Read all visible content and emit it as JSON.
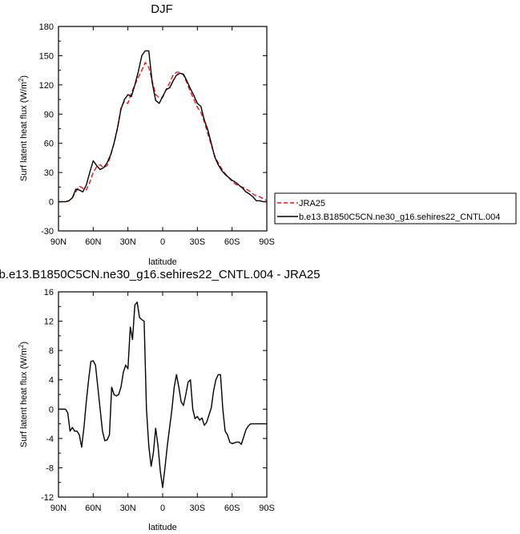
{
  "charts": {
    "top": {
      "title": "DJF",
      "xlabel": "latitude",
      "ylabel_main": "Surf latent heat flux (W/m",
      "ylabel_sup": "2",
      "ylabel_tail": ")"
    },
    "bottom": {
      "title": "b.e13.B1850C5CN.ne30_g16.sehires22_CNTL.004 - JRA25",
      "xlabel": "latitude",
      "ylabel_main": "Surf latent heat flux (W/m",
      "ylabel_sup": "2",
      "ylabel_tail": ")"
    }
  },
  "legend": {
    "items": [
      {
        "label": "JRA25",
        "color": "#e3161a",
        "dash": true
      },
      {
        "label": "b.e13.B1850C5CN.ne30_g16.sehires22_CNTL.004",
        "color": "#000000",
        "dash": false
      }
    ],
    "placement": "right of top panel"
  },
  "chart_data": [
    {
      "type": "line",
      "title": "DJF",
      "xlabel": "latitude",
      "ylabel": "Surf latent heat flux (W/m2)",
      "xlim": [
        90,
        -90
      ],
      "ylim": [
        -30,
        180
      ],
      "x_ticks": [
        90,
        60,
        30,
        0,
        -30,
        -60,
        -90
      ],
      "x_tick_labels": [
        "90N",
        "60N",
        "30N",
        "0",
        "30S",
        "60S",
        "90S"
      ],
      "y_ticks": [
        -30,
        0,
        30,
        60,
        90,
        120,
        150,
        180
      ],
      "y_tick_labels": [
        "-30",
        "0",
        "30",
        "60",
        "90",
        "120",
        "150",
        "180"
      ],
      "grid": false,
      "x": [
        90,
        87,
        84,
        81,
        78,
        75,
        72,
        69,
        66,
        63,
        60,
        57,
        54,
        51,
        48,
        45,
        42,
        39,
        36,
        33,
        30,
        27,
        24,
        21,
        18,
        15,
        12,
        9,
        6,
        3,
        0,
        -3,
        -6,
        -9,
        -12,
        -15,
        -18,
        -21,
        -24,
        -27,
        -30,
        -33,
        -36,
        -39,
        -42,
        -45,
        -48,
        -51,
        -54,
        -57,
        -60,
        -63,
        -66,
        -69,
        -72,
        -75,
        -78,
        -81,
        -84,
        -87,
        -90
      ],
      "series": [
        {
          "name": "JRA25",
          "color": "#e3161a",
          "dash": true,
          "values": [
            0,
            0,
            0,
            1,
            4,
            10,
            16,
            14,
            12,
            20,
            30,
            36,
            38,
            35,
            37,
            47,
            60,
            75,
            97,
            103,
            101,
            112,
            120,
            128,
            135,
            143,
            138,
            124,
            110,
            107,
            107,
            115,
            122,
            130,
            133,
            133,
            130,
            122,
            113,
            105,
            97,
            92,
            82,
            70,
            58,
            47,
            40,
            34,
            29,
            25,
            21,
            18,
            16,
            15,
            13,
            11,
            8,
            6,
            5,
            3,
            1
          ]
        },
        {
          "name": "b.e13.B1850C5CN.ne30_g16.sehires22_CNTL.004",
          "color": "#000000",
          "dash": false,
          "values": [
            0,
            0,
            0,
            1,
            4,
            13,
            12,
            10,
            17,
            30,
            42,
            37,
            33,
            35,
            40,
            48,
            60,
            76,
            95,
            105,
            110,
            108,
            120,
            134,
            150,
            155,
            155,
            122,
            104,
            101,
            108,
            115,
            117,
            124,
            130,
            132,
            131,
            124,
            116,
            109,
            101,
            98,
            84,
            74,
            60,
            46,
            38,
            32,
            28,
            25,
            22,
            20,
            17,
            14,
            10,
            8,
            5,
            1,
            1,
            0,
            0
          ]
        }
      ]
    },
    {
      "type": "line",
      "title": "b.e13.B1850C5CN.ne30_g16.sehires22_CNTL.004 - JRA25",
      "xlabel": "latitude",
      "ylabel": "Surf latent heat flux (W/m2)",
      "xlim": [
        90,
        -90
      ],
      "ylim": [
        -12,
        16
      ],
      "x_ticks": [
        90,
        60,
        30,
        0,
        -30,
        -60,
        -90
      ],
      "x_tick_labels": [
        "90N",
        "60N",
        "30N",
        "0",
        "30S",
        "60S",
        "90S"
      ],
      "y_ticks": [
        -12,
        -8,
        -4,
        0,
        4,
        8,
        12,
        16
      ],
      "y_tick_labels": [
        "-12",
        "-8",
        "-4",
        "0",
        "4",
        "8",
        "12",
        "16"
      ],
      "grid": false,
      "x": [
        90,
        87,
        84,
        82,
        80,
        78,
        76,
        74,
        72,
        70,
        68,
        66,
        64,
        62,
        60,
        58,
        56,
        54,
        52,
        50,
        48,
        46,
        44,
        42,
        40,
        38,
        36,
        34,
        32,
        30,
        28,
        26,
        24,
        22,
        20,
        18,
        16,
        14,
        12,
        10,
        8,
        6,
        4,
        2,
        0,
        -2,
        -4,
        -6,
        -8,
        -10,
        -12,
        -14,
        -16,
        -18,
        -20,
        -22,
        -24,
        -26,
        -28,
        -30,
        -32,
        -34,
        -36,
        -38,
        -40,
        -42,
        -44,
        -46,
        -48,
        -50,
        -52,
        -54,
        -56,
        -58,
        -60,
        -62,
        -64,
        -66,
        -68,
        -70,
        -72,
        -74,
        -76,
        -78,
        -80,
        -82,
        -84,
        -86,
        -88,
        -90
      ],
      "series": [
        {
          "name": "",
          "color": "#000000",
          "dash": false,
          "values": [
            0,
            0,
            0,
            -0.5,
            -3,
            -2.5,
            -3,
            -3,
            -3.5,
            -5.2,
            -2.5,
            1,
            4,
            6.5,
            6.6,
            6,
            3,
            0,
            -3,
            -4.3,
            -4.2,
            -3.5,
            3,
            2,
            1.8,
            2,
            3,
            5,
            6,
            5.5,
            11.2,
            9.5,
            14.2,
            14.6,
            12.5,
            12.2,
            12,
            0,
            -5,
            -7.8,
            -6,
            -2.6,
            -5,
            -8.5,
            -10.7,
            -8,
            -5,
            -2.5,
            0,
            3,
            4.7,
            3,
            1,
            0.5,
            2,
            3.7,
            4,
            0,
            -1.3,
            -1,
            -1.5,
            -1.2,
            -2.2,
            -1.8,
            -0.8,
            0.2,
            2.5,
            4,
            4.7,
            4.7,
            0,
            -3,
            -3.5,
            -4.5,
            -4.7,
            -4.6,
            -4.5,
            -4.5,
            -4.8,
            -3.8,
            -2.8,
            -2.3,
            -2,
            -2,
            -2,
            -2,
            -2,
            -2,
            -2,
            -2
          ]
        }
      ]
    }
  ]
}
